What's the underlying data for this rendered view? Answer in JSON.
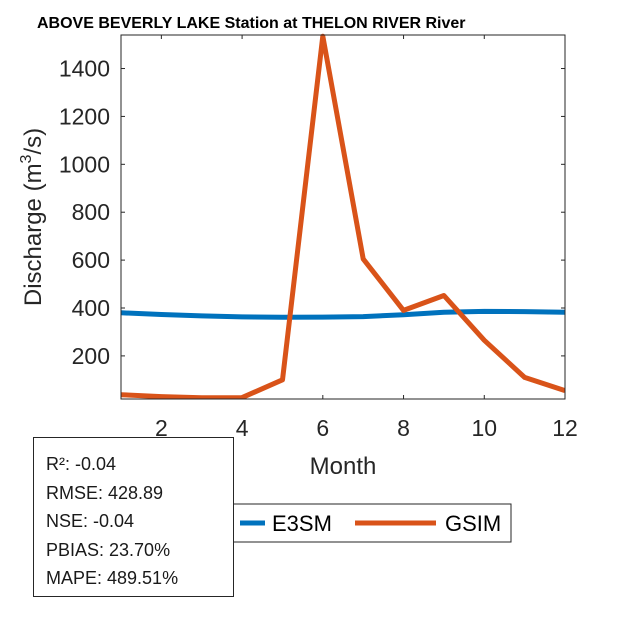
{
  "chart_data": {
    "type": "line",
    "title": "ABOVE BEVERLY LAKE  Station at  THELON RIVER  River",
    "xlabel": "Month",
    "ylabel": "Discharge (m",
    "ylabel_sup": "3",
    "ylabel_tail": "/s)",
    "xlim": [
      1,
      12
    ],
    "ylim": [
      20,
      1540
    ],
    "xticks": [
      2,
      4,
      6,
      8,
      10,
      12
    ],
    "yticks": [
      200,
      400,
      600,
      800,
      1000,
      1200,
      1400
    ],
    "x": [
      1,
      2,
      3,
      4,
      5,
      6,
      7,
      8,
      9,
      10,
      11,
      12
    ],
    "series": [
      {
        "name": "E3SM",
        "color": "#0072BD",
        "values": [
          380,
          373,
          367,
          363,
          361,
          362,
          364,
          372,
          382,
          386,
          385,
          382
        ]
      },
      {
        "name": "GSIM",
        "color": "#D95319",
        "values": [
          38,
          30,
          25,
          26,
          100,
          1535,
          605,
          390,
          452,
          265,
          110,
          55
        ]
      }
    ],
    "legend": {
      "placement": "bottom-center"
    }
  },
  "stats": [
    "R²: -0.04",
    "RMSE: 428.89",
    "NSE: -0.04",
    "PBIAS: 23.70%",
    "MAPE: 489.51%"
  ]
}
